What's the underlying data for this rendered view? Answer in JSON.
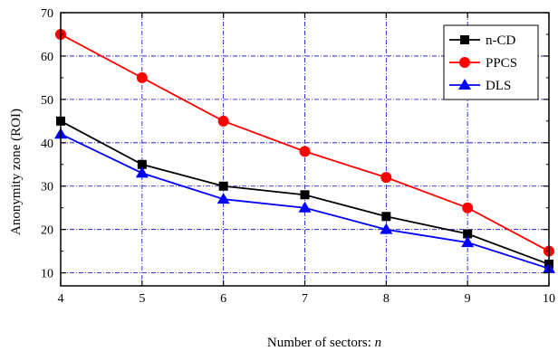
{
  "chart_data": {
    "type": "line",
    "title": "",
    "xlabel": "Number of sectors: ",
    "xlabel_var": "n",
    "ylabel": "Anonymity zone (ROI)",
    "x": [
      4,
      5,
      6,
      7,
      8,
      9,
      10
    ],
    "xlim": [
      4,
      10
    ],
    "ylim": [
      7,
      70
    ],
    "xticks": [
      "4",
      "5",
      "6",
      "7",
      "8",
      "9",
      "10"
    ],
    "yticks": [
      10,
      20,
      30,
      40,
      50,
      60,
      70
    ],
    "ytick_labels": [
      "10",
      "20",
      "30",
      "40",
      "50",
      "60",
      "70"
    ],
    "grid": true,
    "legend_position": "top-right",
    "series": [
      {
        "name": "n-CD",
        "color": "#000000",
        "marker": "square",
        "values": [
          45,
          35,
          30,
          28,
          23,
          19,
          12
        ]
      },
      {
        "name": "PPCS",
        "color": "#ff0000",
        "marker": "circle",
        "values": [
          65,
          55,
          45,
          38,
          32,
          25,
          15
        ]
      },
      {
        "name": "DLS",
        "color": "#0000ff",
        "marker": "triangle",
        "values": [
          42,
          33,
          27,
          25,
          20,
          17,
          11
        ]
      }
    ]
  }
}
